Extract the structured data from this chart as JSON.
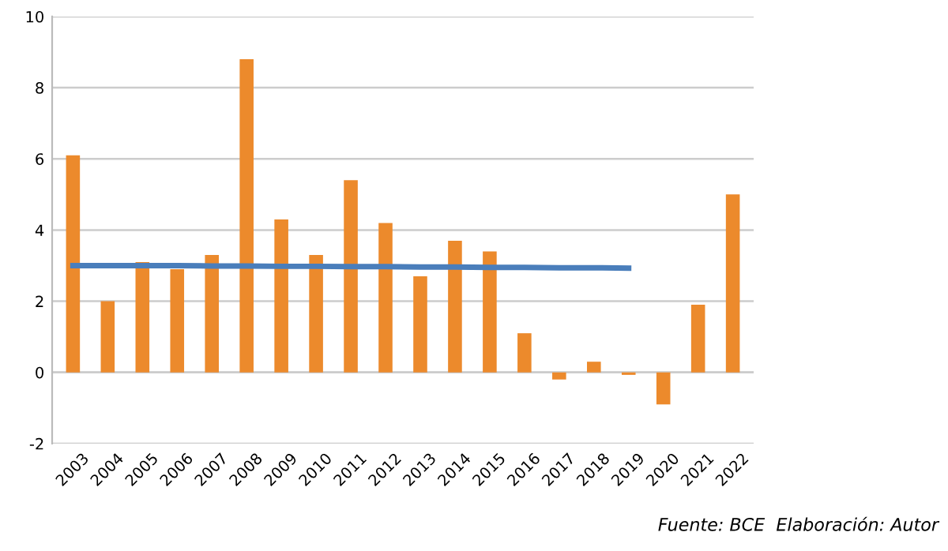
{
  "chart_data": {
    "type": "bar",
    "categories": [
      "2003",
      "2004",
      "2005",
      "2006",
      "2007",
      "2008",
      "2009",
      "2010",
      "2011",
      "2012",
      "2013",
      "2014",
      "2015",
      "2016",
      "2017",
      "2018",
      "2019",
      "2020",
      "2021",
      "2022"
    ],
    "series": [
      {
        "color": "#ec8a2c",
        "values": [
          6.1,
          2.0,
          3.1,
          2.9,
          3.3,
          8.8,
          4.3,
          3.3,
          5.4,
          4.2,
          2.7,
          3.7,
          3.4,
          1.1,
          -0.2,
          0.3,
          -0.07,
          -0.9,
          1.9,
          5.0
        ]
      },
      {
        "type": "line",
        "color": "#4a7ebb",
        "values": [
          3.0,
          3.0,
          3.0,
          3.0,
          2.99,
          2.99,
          2.98,
          2.98,
          2.97,
          2.97,
          2.96,
          2.96,
          2.95,
          2.95,
          2.94,
          2.94,
          2.93,
          null,
          null,
          null
        ]
      }
    ],
    "ylim": [
      -2,
      10
    ],
    "yticks": [
      -2,
      0,
      2,
      4,
      6,
      8,
      10
    ],
    "grid": "y",
    "legend": false,
    "annotations": [
      "Fuente: BCE  Elaboración: Autor"
    ]
  }
}
